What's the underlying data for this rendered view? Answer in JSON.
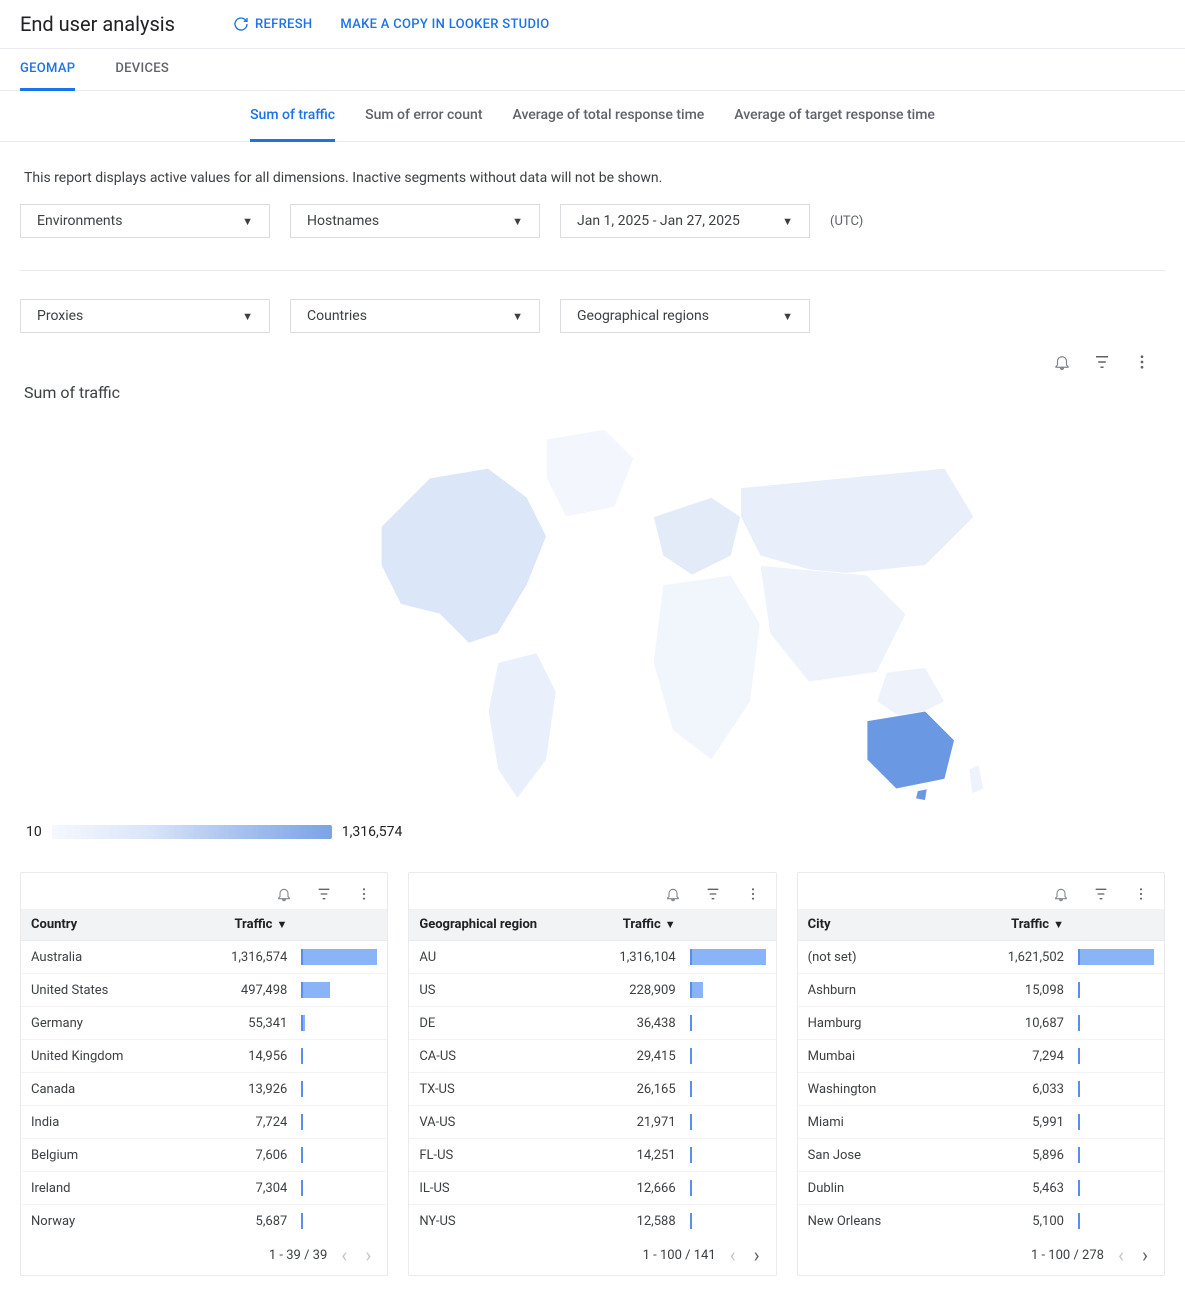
{
  "page_title": "End user analysis",
  "header_actions": {
    "refresh": "REFRESH",
    "copy_studio": "MAKE A COPY IN LOOKER STUDIO"
  },
  "top_tabs": {
    "geomap": "GEOMAP",
    "devices": "DEVICES",
    "active": "geomap"
  },
  "sub_tabs": {
    "items": [
      {
        "key": "sum_traffic",
        "label": "Sum of traffic"
      },
      {
        "key": "sum_error",
        "label": "Sum of error count"
      },
      {
        "key": "avg_total",
        "label": "Average of total response time"
      },
      {
        "key": "avg_target",
        "label": "Average of target response time"
      }
    ],
    "active": "sum_traffic"
  },
  "report_note": "This report displays active values for all dimensions. Inactive segments without data will not be shown.",
  "filters": {
    "row1": {
      "environments": "Environments",
      "hostnames": "Hostnames",
      "date_range": "Jan 1, 2025 - Jan 27, 2025",
      "tz": "(UTC)"
    },
    "row2": {
      "proxies": "Proxies",
      "countries": "Countries",
      "regions": "Geographical regions"
    }
  },
  "chart": {
    "title": "Sum of traffic",
    "legend_min": "10",
    "legend_max": "1,316,574",
    "colors": {
      "land_low": "#eaf0fb",
      "land_mid": "#d3def4",
      "land_high": "#7ba3e6",
      "highlight": "#5b8def",
      "outline": "#ffffff",
      "no_data": "#f1f3f4"
    }
  },
  "tables": {
    "bar_color": "#8ab4f8",
    "max_value": 1621502,
    "country": {
      "col1": "Country",
      "col2": "Traffic",
      "pager": "1 - 39 / 39",
      "has_prev": false,
      "has_next": false,
      "rows": [
        {
          "label": "Australia",
          "value": "1,316,574",
          "raw": 1316574
        },
        {
          "label": "United States",
          "value": "497,498",
          "raw": 497498
        },
        {
          "label": "Germany",
          "value": "55,341",
          "raw": 55341
        },
        {
          "label": "United Kingdom",
          "value": "14,956",
          "raw": 14956
        },
        {
          "label": "Canada",
          "value": "13,926",
          "raw": 13926
        },
        {
          "label": "India",
          "value": "7,724",
          "raw": 7724
        },
        {
          "label": "Belgium",
          "value": "7,606",
          "raw": 7606
        },
        {
          "label": "Ireland",
          "value": "7,304",
          "raw": 7304
        },
        {
          "label": "Norway",
          "value": "5,687",
          "raw": 5687
        }
      ]
    },
    "region": {
      "col1": "Geographical region",
      "col2": "Traffic",
      "pager": "1 - 100 / 141",
      "has_prev": false,
      "has_next": true,
      "rows": [
        {
          "label": "AU",
          "value": "1,316,104",
          "raw": 1316104
        },
        {
          "label": "US",
          "value": "228,909",
          "raw": 228909
        },
        {
          "label": "DE",
          "value": "36,438",
          "raw": 36438
        },
        {
          "label": "CA-US",
          "value": "29,415",
          "raw": 29415
        },
        {
          "label": "TX-US",
          "value": "26,165",
          "raw": 26165
        },
        {
          "label": "VA-US",
          "value": "21,971",
          "raw": 21971
        },
        {
          "label": "FL-US",
          "value": "14,251",
          "raw": 14251
        },
        {
          "label": "IL-US",
          "value": "12,666",
          "raw": 12666
        },
        {
          "label": "NY-US",
          "value": "12,588",
          "raw": 12588
        }
      ]
    },
    "city": {
      "col1": "City",
      "col2": "Traffic",
      "pager": "1 - 100 / 278",
      "has_prev": false,
      "has_next": true,
      "rows": [
        {
          "label": "(not set)",
          "value": "1,621,502",
          "raw": 1621502
        },
        {
          "label": "Ashburn",
          "value": "15,098",
          "raw": 15098
        },
        {
          "label": "Hamburg",
          "value": "10,687",
          "raw": 10687
        },
        {
          "label": "Mumbai",
          "value": "7,294",
          "raw": 7294
        },
        {
          "label": "Washington",
          "value": "6,033",
          "raw": 6033
        },
        {
          "label": "Miami",
          "value": "5,991",
          "raw": 5991
        },
        {
          "label": "San Jose",
          "value": "5,896",
          "raw": 5896
        },
        {
          "label": "Dublin",
          "value": "5,463",
          "raw": 5463
        },
        {
          "label": "New Orleans",
          "value": "5,100",
          "raw": 5100
        }
      ]
    }
  }
}
